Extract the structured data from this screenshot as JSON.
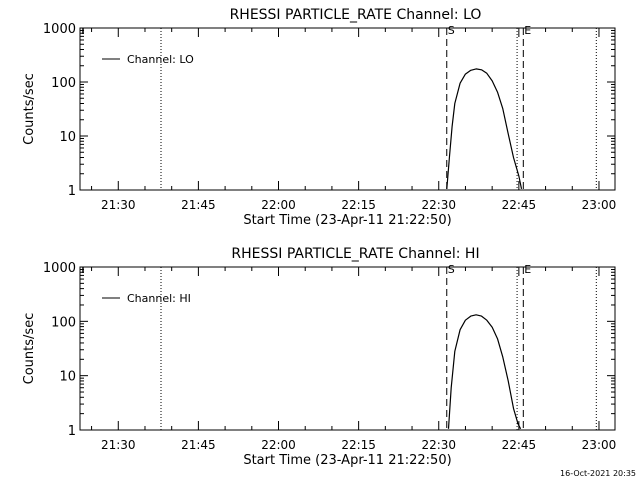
{
  "footer": {
    "timestamp": "16-Oct-2021 20:35"
  },
  "chart_data": [
    {
      "type": "line",
      "title": "RHESSI PARTICLE_RATE Channel: LO",
      "xlabel": "Start Time (23-Apr-11 21:22:50)",
      "ylabel": "Counts/sec",
      "yscale": "log",
      "ylim": [
        1,
        1000
      ],
      "xlim": [
        "21:22:50",
        "23:03:00"
      ],
      "xticks": [
        "21:30",
        "21:45",
        "22:00",
        "22:15",
        "22:30",
        "22:45",
        "23:00"
      ],
      "yticks": [
        "1",
        "10",
        "100",
        "1000"
      ],
      "legend": {
        "position": "top-left",
        "entries": [
          "Channel: LO"
        ]
      },
      "markers": [
        {
          "label": "S",
          "time": "22:31:30",
          "style": "dashed"
        },
        {
          "label": "E",
          "time": "22:45:50",
          "style": "dashed"
        }
      ],
      "dotted_lines": [
        "21:38:00",
        "22:44:40",
        "22:59:30"
      ],
      "series": [
        {
          "name": "Channel: LO",
          "x": [
            "22:31:30",
            "22:32:00",
            "22:32:30",
            "22:33:00",
            "22:34:00",
            "22:35:00",
            "22:36:00",
            "22:37:00",
            "22:38:00",
            "22:39:00",
            "22:40:00",
            "22:41:00",
            "22:42:00",
            "22:43:00",
            "22:44:00",
            "22:45:00",
            "22:45:30"
          ],
          "y": [
            1.05,
            4,
            15,
            40,
            95,
            140,
            165,
            175,
            168,
            145,
            105,
            65,
            32,
            11,
            4,
            1.8,
            1.05
          ]
        }
      ]
    },
    {
      "type": "line",
      "title": "RHESSI PARTICLE_RATE Channel: HI",
      "xlabel": "Start Time (23-Apr-11 21:22:50)",
      "ylabel": "Counts/sec",
      "yscale": "log",
      "ylim": [
        1,
        1000
      ],
      "xlim": [
        "21:22:50",
        "23:03:00"
      ],
      "xticks": [
        "21:30",
        "21:45",
        "22:00",
        "22:15",
        "22:30",
        "22:45",
        "23:00"
      ],
      "yticks": [
        "1",
        "10",
        "100",
        "1000"
      ],
      "legend": {
        "position": "top-left",
        "entries": [
          "Channel: HI"
        ]
      },
      "markers": [
        {
          "label": "S",
          "time": "22:31:30",
          "style": "dashed"
        },
        {
          "label": "E",
          "time": "22:45:50",
          "style": "dashed"
        }
      ],
      "dotted_lines": [
        "21:38:00",
        "22:44:40",
        "22:59:30"
      ],
      "series": [
        {
          "name": "Channel: HI",
          "x": [
            "22:31:50",
            "22:32:20",
            "22:33:00",
            "22:34:00",
            "22:35:00",
            "22:36:00",
            "22:37:00",
            "22:38:00",
            "22:39:00",
            "22:40:00",
            "22:41:00",
            "22:42:00",
            "22:43:00",
            "22:44:00",
            "22:44:50",
            "22:45:20"
          ],
          "y": [
            1.05,
            6,
            28,
            70,
            105,
            125,
            132,
            125,
            105,
            78,
            48,
            22,
            8,
            2.5,
            1.3,
            1.05
          ]
        }
      ]
    }
  ]
}
